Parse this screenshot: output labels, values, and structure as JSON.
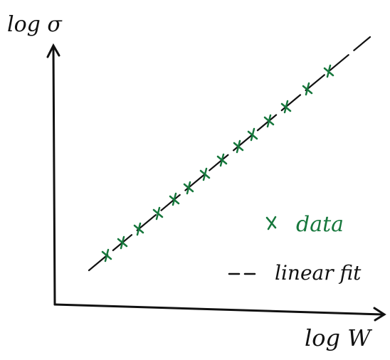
{
  "axes": {
    "y_label": "log σ",
    "x_label": "log W"
  },
  "legend": {
    "data": "data",
    "fit": "linear fit"
  }
}
